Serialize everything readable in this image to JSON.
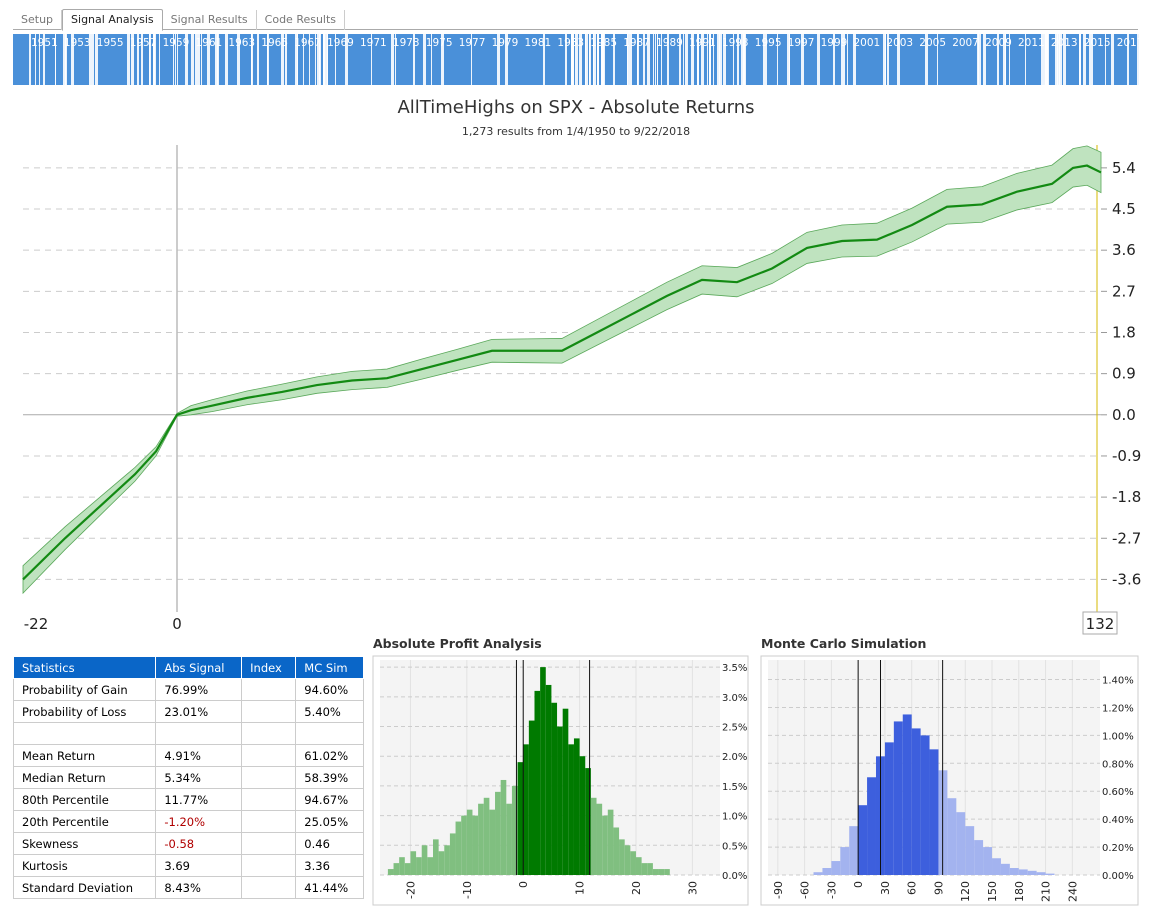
{
  "tabs": [
    "Setup",
    "Signal Analysis",
    "Signal Results",
    "Code Results"
  ],
  "active_tab": 1,
  "timeline": {
    "years": [
      "1951",
      "1953",
      "1955",
      "1957",
      "1959",
      "1961",
      "1963",
      "1965",
      "1967",
      "1969",
      "1971",
      "1973",
      "1975",
      "1977",
      "1979",
      "1981",
      "1983",
      "1985",
      "1987",
      "1989",
      "1991",
      "1993",
      "1995",
      "1997",
      "1999",
      "2001",
      "2003",
      "2005",
      "2007",
      "2009",
      "2011",
      "2013",
      "2015",
      "2017"
    ],
    "color": "#4a90d9"
  },
  "chart_data": [
    {
      "type": "line",
      "title": "AllTimeHighs on SPX - Absolute Returns",
      "subtitle": "1,273 results from 1/4/1950 to 9/22/2018",
      "x": [
        -22,
        -16,
        -11,
        -6,
        -3,
        0,
        2,
        5,
        10,
        15,
        20,
        25,
        30,
        35,
        40,
        45,
        50,
        55,
        60,
        65,
        70,
        75,
        80,
        85,
        90,
        95,
        100,
        105,
        110,
        115,
        120,
        125,
        128,
        130,
        132
      ],
      "series": [
        {
          "color": "#138a13",
          "values": [
            -3.6,
            -2.7,
            -2.0,
            -1.3,
            -0.8,
            0,
            0.1,
            0.2,
            0.37,
            0.5,
            0.65,
            0.75,
            0.8,
            1.0,
            1.2,
            1.4,
            1.4,
            1.4,
            1.8,
            2.2,
            2.6,
            2.95,
            2.9,
            3.2,
            3.65,
            3.8,
            3.83,
            4.15,
            4.55,
            4.6,
            4.88,
            5.05,
            5.4,
            5.45,
            5.3
          ]
        }
      ],
      "band": {
        "color": "#bfe3bf",
        "upper": [
          -3.3,
          -2.45,
          -1.8,
          -1.15,
          -0.7,
          0.03,
          0.2,
          0.33,
          0.52,
          0.67,
          0.83,
          0.95,
          1.0,
          1.22,
          1.43,
          1.65,
          1.66,
          1.67,
          2.08,
          2.49,
          2.9,
          3.26,
          3.22,
          3.53,
          3.99,
          4.15,
          4.19,
          4.52,
          4.93,
          4.99,
          5.28,
          5.46,
          5.82,
          5.88,
          5.74
        ],
        "lower": [
          -3.9,
          -2.95,
          -2.2,
          -1.45,
          -0.9,
          -0.03,
          0.0,
          0.07,
          0.22,
          0.33,
          0.47,
          0.55,
          0.6,
          0.78,
          0.97,
          1.15,
          1.14,
          1.13,
          1.52,
          1.91,
          2.3,
          2.64,
          2.58,
          2.87,
          3.31,
          3.45,
          3.47,
          3.78,
          4.17,
          4.21,
          4.48,
          4.64,
          4.98,
          5.02,
          4.86
        ]
      },
      "xlim": [
        -22,
        132
      ],
      "xticks": [
        -22,
        0,
        132
      ],
      "ylim": [
        -4.05,
        5.9
      ],
      "yticks": [
        -3.6,
        -2.7,
        -1.8,
        -0.9,
        {
          "value": 0,
          "label": "0.0"
        },
        0.9,
        1.8,
        2.7,
        3.6,
        4.5,
        5.4
      ],
      "grid": true
    },
    {
      "type": "histogram",
      "title": "Absolute Profit Analysis",
      "bins": [
        -24,
        -23,
        -22,
        -21,
        -20,
        -19,
        -18,
        -17,
        -16,
        -15,
        -14,
        -13,
        -12,
        -11,
        -10,
        -9,
        -8,
        -7,
        -6,
        -5,
        -4,
        -3,
        -2,
        -1,
        0,
        1,
        2,
        3,
        4,
        5,
        6,
        7,
        8,
        9,
        10,
        11,
        12,
        13,
        14,
        15,
        16,
        17,
        18,
        19,
        20,
        21,
        22,
        23,
        24,
        25,
        26
      ],
      "values": [
        0.1,
        0.2,
        0.3,
        0.2,
        0.4,
        0.3,
        0.5,
        0.3,
        0.6,
        0.4,
        0.5,
        0.7,
        0.9,
        1.0,
        1.1,
        1.0,
        1.2,
        1.3,
        1.1,
        1.4,
        1.6,
        1.2,
        1.5,
        1.9,
        2.2,
        2.6,
        3.1,
        3.5,
        3.2,
        2.9,
        2.5,
        2.8,
        2.2,
        2.3,
        2.0,
        1.8,
        1.3,
        1.2,
        1.0,
        1.1,
        0.8,
        0.6,
        0.5,
        0.4,
        0.3,
        0.2,
        0.2,
        0.1,
        0.1,
        0.1
      ],
      "markers": [
        -1.2,
        0,
        11.77
      ],
      "colors": [
        "#80bf80",
        "#007a00"
      ],
      "xlim": [
        -25.4,
        34.9
      ],
      "xticks": [
        -20,
        -10,
        0,
        10,
        20,
        30
      ],
      "ylim": [
        0,
        3.62
      ],
      "yticks": [
        {
          "value": 0,
          "label": "0.0%"
        },
        {
          "value": 0.5,
          "label": "0.5%"
        },
        {
          "value": 1,
          "label": "1.0%"
        },
        {
          "value": 1.5,
          "label": "1.5%"
        },
        {
          "value": 2,
          "label": "2.0%"
        },
        {
          "value": 2.5,
          "label": "2.5%"
        },
        {
          "value": 3,
          "label": "3.0%"
        },
        {
          "value": 3.5,
          "label": "3.5%"
        }
      ]
    },
    {
      "type": "histogram",
      "title": "Monte Carlo Simulation",
      "bins": [
        -50,
        -40,
        -30,
        -20,
        -10,
        0,
        10,
        20,
        30,
        40,
        50,
        60,
        70,
        80,
        90,
        100,
        110,
        120,
        130,
        140,
        150,
        160,
        170,
        180,
        190,
        200,
        210,
        220
      ],
      "values": [
        0.02,
        0.05,
        0.1,
        0.2,
        0.35,
        0.5,
        0.7,
        0.85,
        0.95,
        1.1,
        1.15,
        1.05,
        1.0,
        0.9,
        0.75,
        0.55,
        0.45,
        0.35,
        0.25,
        0.2,
        0.12,
        0.08,
        0.05,
        0.04,
        0.03,
        0.02,
        0.01
      ],
      "markers": [
        0,
        25.05,
        94.67
      ],
      "colors": [
        "#a3b3ef",
        "#3d5fdd"
      ],
      "xlim": [
        -101,
        271
      ],
      "xticks": [
        -90,
        -60,
        -30,
        0,
        30,
        60,
        90,
        120,
        150,
        180,
        210,
        240
      ],
      "ylim": [
        0,
        1.54
      ],
      "yticks": [
        {
          "value": 0,
          "label": "0.00%"
        },
        {
          "value": 0.2,
          "label": "0.20%"
        },
        {
          "value": 0.4,
          "label": "0.40%"
        },
        {
          "value": 0.6,
          "label": "0.60%"
        },
        {
          "value": 0.8,
          "label": "0.80%"
        },
        {
          "value": 1,
          "label": "1.00%"
        },
        {
          "value": 1.2,
          "label": "1.20%"
        },
        {
          "value": 1.4,
          "label": "1.40%"
        }
      ]
    }
  ],
  "statistics_table": {
    "header": [
      "Statistics",
      "Abs Signal",
      "Index",
      "MC Sim"
    ],
    "rows": [
      [
        "Probability of Gain",
        "76.99%",
        null,
        "94.60%"
      ],
      [
        "Probability of Loss",
        "23.01%",
        null,
        "5.40%"
      ],
      [
        null,
        null,
        null,
        null
      ],
      [
        "Mean Return",
        "4.91%",
        null,
        "61.02%"
      ],
      [
        "Median Return",
        "5.34%",
        null,
        "58.39%"
      ],
      [
        "80th Percentile",
        "11.77%",
        null,
        "94.67%"
      ],
      [
        "20th Percentile",
        "-1.20%",
        null,
        "25.05%"
      ],
      [
        "Skewness",
        "-0.58",
        null,
        "0.46"
      ],
      [
        "Kurtosis",
        "3.69",
        null,
        "3.36"
      ],
      [
        "Standard Deviation",
        "8.43%",
        null,
        "41.44%"
      ]
    ]
  }
}
